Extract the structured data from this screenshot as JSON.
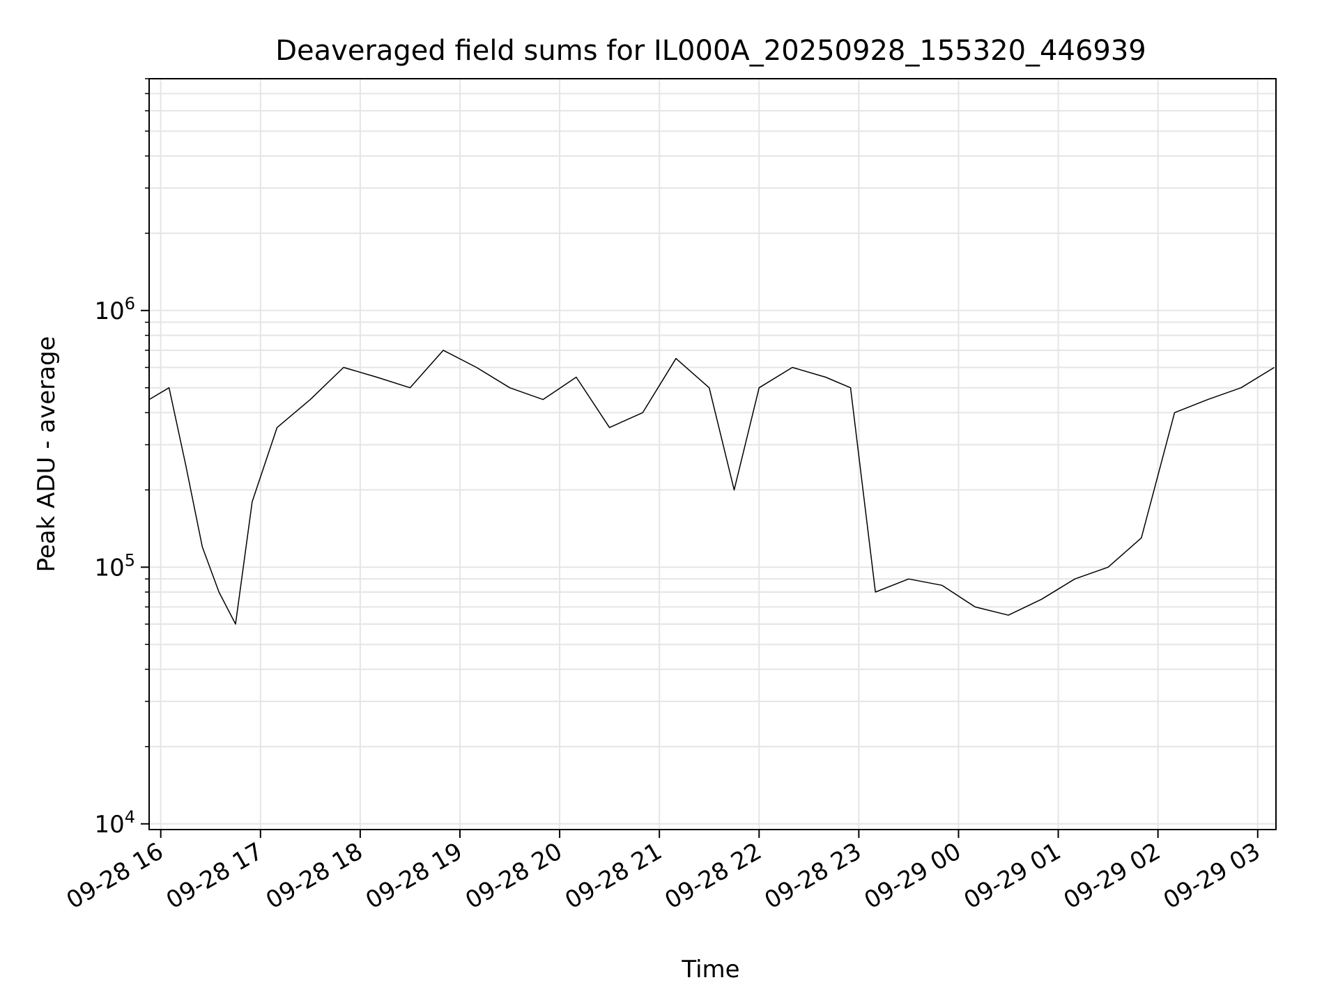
{
  "chart_data": {
    "type": "line",
    "title": "Deaveraged field sums for IL000A_20250928_155320_446939",
    "xlabel": "Time",
    "ylabel": "Peak ADU - average",
    "y_scale": "log",
    "ylim": [
      9500,
      8000000
    ],
    "xlim": [
      "2025-09-28 15:53",
      "2025-09-29 03:11"
    ],
    "grid": "major and minor",
    "line_color": "#000000",
    "grid_color": "#e5e5e5",
    "x_ticks": [
      {
        "value": "2025-09-28 16:00",
        "label": "09-28 16"
      },
      {
        "value": "2025-09-28 17:00",
        "label": "09-28 17"
      },
      {
        "value": "2025-09-28 18:00",
        "label": "09-28 18"
      },
      {
        "value": "2025-09-28 19:00",
        "label": "09-28 19"
      },
      {
        "value": "2025-09-28 20:00",
        "label": "09-28 20"
      },
      {
        "value": "2025-09-28 21:00",
        "label": "09-28 21"
      },
      {
        "value": "2025-09-28 22:00",
        "label": "09-28 22"
      },
      {
        "value": "2025-09-28 23:00",
        "label": "09-28 23"
      },
      {
        "value": "2025-09-29 00:00",
        "label": "09-29 00"
      },
      {
        "value": "2025-09-29 01:00",
        "label": "09-29 01"
      },
      {
        "value": "2025-09-29 02:00",
        "label": "09-29 02"
      },
      {
        "value": "2025-09-29 03:00",
        "label": "09-29 03"
      }
    ],
    "y_ticks": [
      {
        "value": 10000,
        "base": "10",
        "exp": "4"
      },
      {
        "value": 100000,
        "base": "10",
        "exp": "5"
      },
      {
        "value": 1000000,
        "base": "10",
        "exp": "6"
      }
    ],
    "series": [
      {
        "x": [
          "2025-09-28 15:53",
          "2025-09-28 16:05",
          "2025-09-28 16:15",
          "2025-09-28 16:25",
          "2025-09-28 16:35",
          "2025-09-28 16:45",
          "2025-09-28 16:55",
          "2025-09-28 17:10",
          "2025-09-28 17:30",
          "2025-09-28 17:50",
          "2025-09-28 18:10",
          "2025-09-28 18:30",
          "2025-09-28 18:50",
          "2025-09-28 19:10",
          "2025-09-28 19:30",
          "2025-09-28 19:50",
          "2025-09-28 20:10",
          "2025-09-28 20:30",
          "2025-09-28 20:50",
          "2025-09-28 21:10",
          "2025-09-28 21:30",
          "2025-09-28 21:45",
          "2025-09-28 22:00",
          "2025-09-28 22:20",
          "2025-09-28 22:40",
          "2025-09-28 22:55",
          "2025-09-28 23:10",
          "2025-09-28 23:30",
          "2025-09-28 23:50",
          "2025-09-29 00:10",
          "2025-09-29 00:30",
          "2025-09-29 00:50",
          "2025-09-29 01:10",
          "2025-09-29 01:30",
          "2025-09-29 01:50",
          "2025-09-29 02:10",
          "2025-09-29 02:30",
          "2025-09-29 02:50",
          "2025-09-29 03:10"
        ],
        "y": [
          450000,
          500000,
          250000,
          120000,
          80000,
          60000,
          180000,
          350000,
          450000,
          600000,
          550000,
          500000,
          700000,
          600000,
          500000,
          450000,
          550000,
          350000,
          400000,
          650000,
          500000,
          200000,
          500000,
          600000,
          550000,
          500000,
          80000,
          90000,
          85000,
          70000,
          65000,
          75000,
          90000,
          100000,
          130000,
          400000,
          450000,
          500000,
          600000
        ]
      }
    ]
  }
}
